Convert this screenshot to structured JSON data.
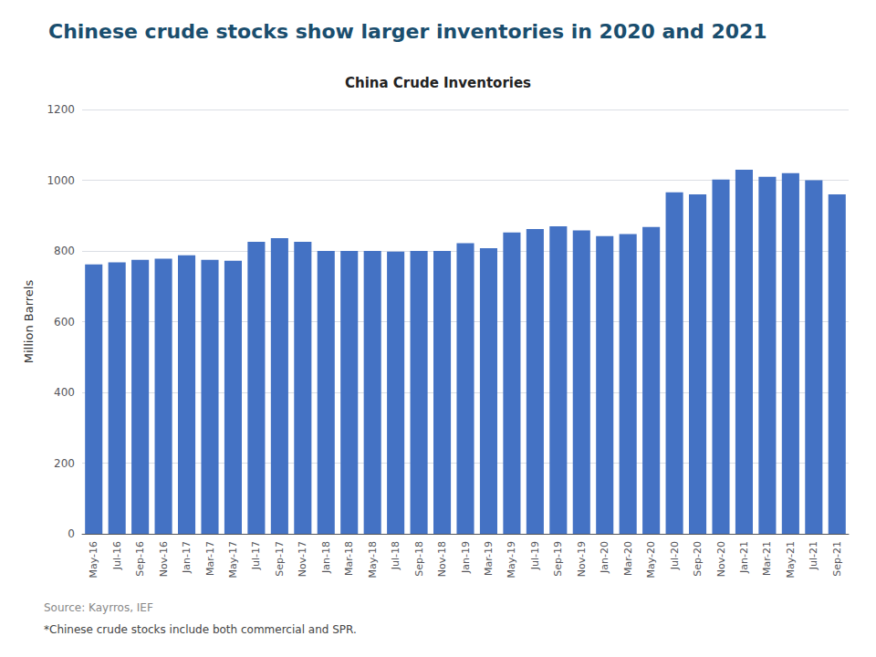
{
  "chart_data": {
    "type": "bar",
    "title": "Chinese crude stocks show larger inventories in 2020 and 2021",
    "subtitle": "China Crude Inventories",
    "ylabel": "Million Barrels",
    "annotations": [
      "Source: Kayrros, IEF",
      "*Chinese crude stocks include both commercial and SPR."
    ],
    "categories": [
      "May-16",
      "Jul-16",
      "Sep-16",
      "Nov-16",
      "Jan-17",
      "Mar-17",
      "May-17",
      "Jul-17",
      "Sep-17",
      "Nov-17",
      "Jan-18",
      "Mar-18",
      "May-18",
      "Jul-18",
      "Sep-18",
      "Nov-18",
      "Jan-19",
      "Mar-19",
      "May-19",
      "Jul-19",
      "Sep-19",
      "Nov-19",
      "Jan-20",
      "Mar-20",
      "May-20",
      "Jul-20",
      "Sep-20",
      "Nov-20",
      "Jan-21",
      "Mar-21",
      "May-21",
      "Jul-21",
      "Sep-21"
    ],
    "values": [
      762,
      768,
      775,
      778,
      788,
      775,
      772,
      826,
      836,
      826,
      800,
      800,
      800,
      798,
      800,
      800,
      822,
      808,
      852,
      862,
      870,
      858,
      842,
      848,
      868,
      966,
      960,
      1002,
      1030,
      1010,
      1020,
      1000,
      960
    ],
    "color": "#4472C4",
    "ylim": [
      0,
      1200
    ],
    "yticks": [
      0,
      200,
      400,
      600,
      800,
      1000,
      1200
    ],
    "grid": true
  }
}
